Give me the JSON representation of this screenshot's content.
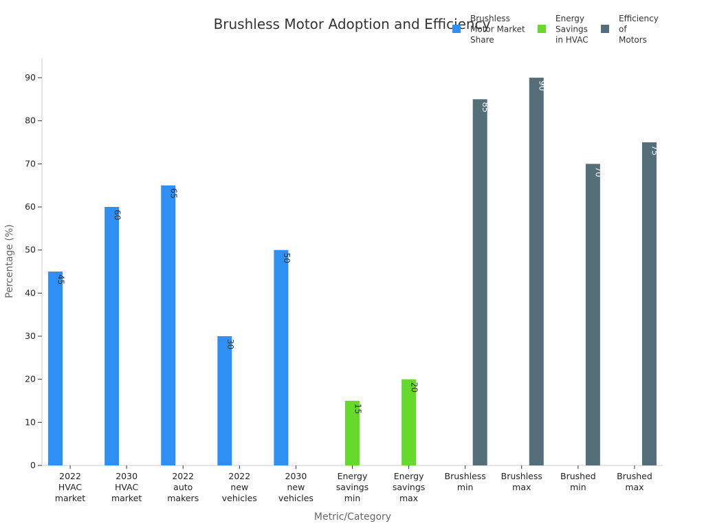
{
  "chart_data": {
    "type": "bar",
    "title": "Brushless Motor Adoption and Efficiency",
    "xlabel": "Metric/Category",
    "ylabel": "Percentage (%)",
    "ylim": [
      0,
      95
    ],
    "yticks": [
      0,
      10,
      20,
      30,
      40,
      50,
      60,
      70,
      80,
      90
    ],
    "grid": false,
    "legend_position": "top-right",
    "categories": [
      [
        "2022",
        "HVAC",
        "market"
      ],
      [
        "2030",
        "HVAC",
        "market"
      ],
      [
        "2022",
        "auto",
        "makers"
      ],
      [
        "2022",
        "new",
        "vehicles"
      ],
      [
        "2030",
        "new",
        "vehicles"
      ],
      [
        "Energy",
        "savings",
        "min"
      ],
      [
        "Energy",
        "savings",
        "max"
      ],
      [
        "Brushless",
        "min"
      ],
      [
        "Brushless",
        "max"
      ],
      [
        "Brushed",
        "min"
      ],
      [
        "Brushed",
        "max"
      ]
    ],
    "series": [
      {
        "name": "Brushless Motor Market Share",
        "legend_lines": [
          "Brushless",
          "Motor Market",
          "Share"
        ],
        "color": "#2e90f5",
        "label_color": "#333333",
        "values": [
          45,
          60,
          65,
          30,
          50,
          null,
          null,
          null,
          null,
          null,
          null
        ]
      },
      {
        "name": "Energy Savings in HVAC",
        "legend_lines": [
          "Energy",
          "Savings",
          "in HVAC"
        ],
        "color": "#66d92c",
        "label_color": "#333333",
        "values": [
          null,
          null,
          null,
          null,
          null,
          15,
          20,
          null,
          null,
          null,
          null
        ]
      },
      {
        "name": "Efficiency of Motors",
        "legend_lines": [
          "Efficiency",
          "of",
          "Motors"
        ],
        "color": "#546e7a",
        "label_color": "#ffffff",
        "values": [
          null,
          null,
          null,
          null,
          null,
          null,
          null,
          85,
          90,
          70,
          75
        ]
      }
    ]
  }
}
